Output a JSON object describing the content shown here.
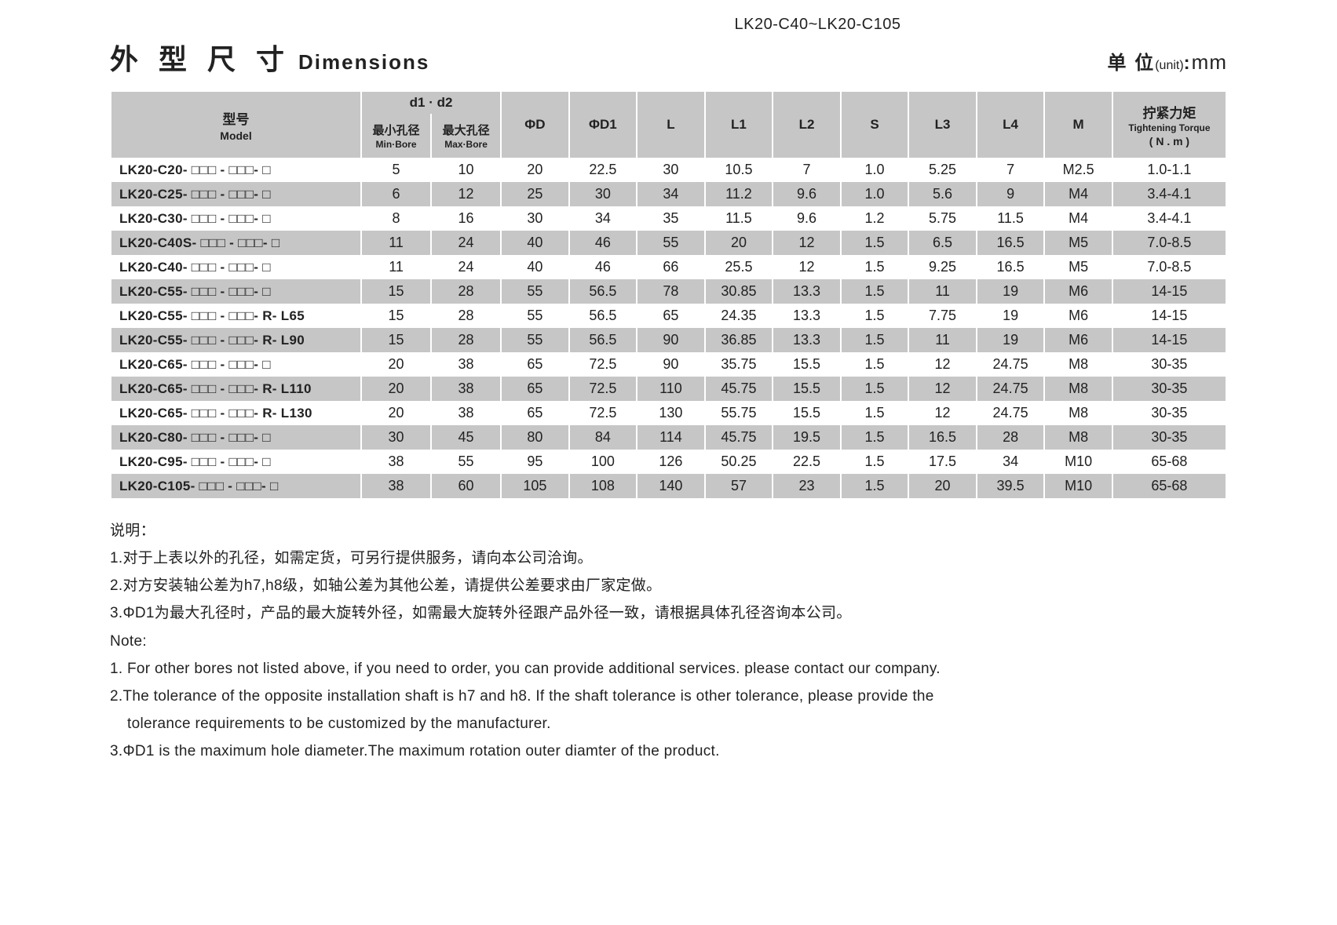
{
  "header_range": "LK20-C40~LK20-C105",
  "title_cn": "外 型 尺 寸",
  "title_en": "Dimensions",
  "unit_label_cn": "单 位",
  "unit_label_en": "(unit)",
  "unit_sep": ":",
  "unit_value": "mm",
  "table": {
    "header": {
      "model_cn": "型号",
      "model_en": "Model",
      "d1d2": "d1 · d2",
      "min_bore_cn": "最小孔径",
      "min_bore_en": "Min·Bore",
      "max_bore_cn": "最大孔径",
      "max_bore_en": "Max·Bore",
      "phi_d": "ΦD",
      "phi_d1": "ΦD1",
      "L": "L",
      "L1": "L1",
      "L2": "L2",
      "S": "S",
      "L3": "L3",
      "L4": "L4",
      "M": "M",
      "torque_cn": "拧紧力矩",
      "torque_en": "Tightening Torque",
      "torque_unit": "( N . m )"
    },
    "rows": [
      {
        "model": "LK20-C20- □□□ - □□□- □",
        "min": "5",
        "max": "10",
        "D": "20",
        "D1": "22.5",
        "L": "30",
        "L1": "10.5",
        "L2": "7",
        "S": "1.0",
        "L3": "5.25",
        "L4": "7",
        "M": "M2.5",
        "T": "1.0-1.1"
      },
      {
        "model": "LK20-C25- □□□ - □□□- □",
        "min": "6",
        "max": "12",
        "D": "25",
        "D1": "30",
        "L": "34",
        "L1": "11.2",
        "L2": "9.6",
        "S": "1.0",
        "L3": "5.6",
        "L4": "9",
        "M": "M4",
        "T": "3.4-4.1"
      },
      {
        "model": "LK20-C30- □□□ - □□□- □",
        "min": "8",
        "max": "16",
        "D": "30",
        "D1": "34",
        "L": "35",
        "L1": "11.5",
        "L2": "9.6",
        "S": "1.2",
        "L3": "5.75",
        "L4": "11.5",
        "M": "M4",
        "T": "3.4-4.1"
      },
      {
        "model": "LK20-C40S- □□□ - □□□- □",
        "min": "11",
        "max": "24",
        "D": "40",
        "D1": "46",
        "L": "55",
        "L1": "20",
        "L2": "12",
        "S": "1.5",
        "L3": "6.5",
        "L4": "16.5",
        "M": "M5",
        "T": "7.0-8.5"
      },
      {
        "model": "LK20-C40- □□□ - □□□- □",
        "min": "11",
        "max": "24",
        "D": "40",
        "D1": "46",
        "L": "66",
        "L1": "25.5",
        "L2": "12",
        "S": "1.5",
        "L3": "9.25",
        "L4": "16.5",
        "M": "M5",
        "T": "7.0-8.5"
      },
      {
        "model": "LK20-C55- □□□ - □□□- □",
        "min": "15",
        "max": "28",
        "D": "55",
        "D1": "56.5",
        "L": "78",
        "L1": "30.85",
        "L2": "13.3",
        "S": "1.5",
        "L3": "11",
        "L4": "19",
        "M": "M6",
        "T": "14-15"
      },
      {
        "model": "LK20-C55- □□□ - □□□- R- L65",
        "min": "15",
        "max": "28",
        "D": "55",
        "D1": "56.5",
        "L": "65",
        "L1": "24.35",
        "L2": "13.3",
        "S": "1.5",
        "L3": "7.75",
        "L4": "19",
        "M": "M6",
        "T": "14-15"
      },
      {
        "model": "LK20-C55- □□□ - □□□- R- L90",
        "min": "15",
        "max": "28",
        "D": "55",
        "D1": "56.5",
        "L": "90",
        "L1": "36.85",
        "L2": "13.3",
        "S": "1.5",
        "L3": "11",
        "L4": "19",
        "M": "M6",
        "T": "14-15"
      },
      {
        "model": "LK20-C65- □□□ - □□□- □",
        "min": "20",
        "max": "38",
        "D": "65",
        "D1": "72.5",
        "L": "90",
        "L1": "35.75",
        "L2": "15.5",
        "S": "1.5",
        "L3": "12",
        "L4": "24.75",
        "M": "M8",
        "T": "30-35"
      },
      {
        "model": "LK20-C65- □□□ - □□□- R- L110",
        "min": "20",
        "max": "38",
        "D": "65",
        "D1": "72.5",
        "L": "110",
        "L1": "45.75",
        "L2": "15.5",
        "S": "1.5",
        "L3": "12",
        "L4": "24.75",
        "M": "M8",
        "T": "30-35"
      },
      {
        "model": "LK20-C65- □□□ - □□□- R- L130",
        "min": "20",
        "max": "38",
        "D": "65",
        "D1": "72.5",
        "L": "130",
        "L1": "55.75",
        "L2": "15.5",
        "S": "1.5",
        "L3": "12",
        "L4": "24.75",
        "M": "M8",
        "T": "30-35"
      },
      {
        "model": "LK20-C80- □□□ - □□□- □",
        "min": "30",
        "max": "45",
        "D": "80",
        "D1": "84",
        "L": "114",
        "L1": "45.75",
        "L2": "19.5",
        "S": "1.5",
        "L3": "16.5",
        "L4": "28",
        "M": "M8",
        "T": "30-35"
      },
      {
        "model": "LK20-C95- □□□ - □□□- □",
        "min": "38",
        "max": "55",
        "D": "95",
        "D1": "100",
        "L": "126",
        "L1": "50.25",
        "L2": "22.5",
        "S": "1.5",
        "L3": "17.5",
        "L4": "34",
        "M": "M10",
        "T": "65-68"
      },
      {
        "model": "LK20-C105- □□□ - □□□- □",
        "min": "38",
        "max": "60",
        "D": "105",
        "D1": "108",
        "L": "140",
        "L1": "57",
        "L2": "23",
        "S": "1.5",
        "L3": "20",
        "L4": "39.5",
        "M": "M10",
        "T": "65-68"
      }
    ]
  },
  "notes": {
    "head_cn": "说明：",
    "cn": [
      "1.对于上表以外的孔径，如需定货，可另行提供服务，请向本公司洽询。",
      "2.对方安装轴公差为h7,h8级，如轴公差为其他公差，请提供公差要求由厂家定做。",
      "3.ΦD1为最大孔径时，产品的最大旋转外径，如需最大旋转外径跟产品外径一致，请根据具体孔径咨询本公司。"
    ],
    "head_en": "Note:",
    "en": [
      "1. For other bores not listed above, if you need to order, you can provide additional services. please contact our company.",
      "2.The tolerance of the opposite installation shaft is h7 and h8. If the shaft tolerance is other tolerance, please provide the",
      "tolerance requirements to be customized by the manufacturer.",
      "3.ΦD1 is the maximum hole diameter.The maximum rotation outer diamter of the product."
    ]
  }
}
